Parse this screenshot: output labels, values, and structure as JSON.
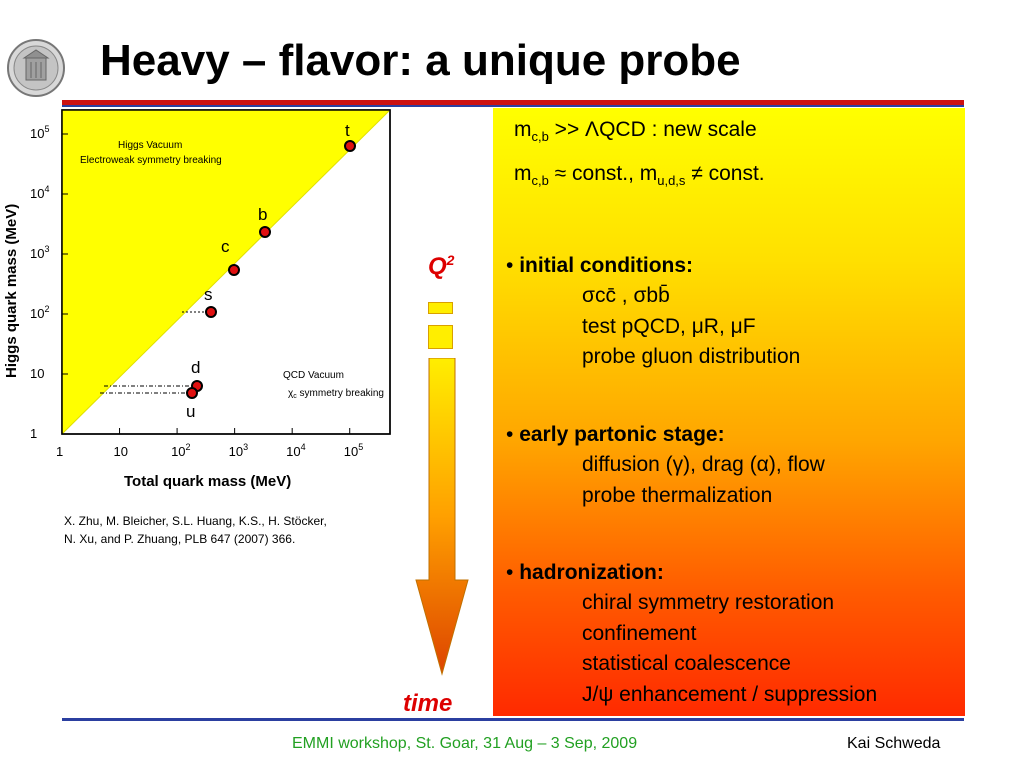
{
  "title": "Heavy – flavor: a unique probe",
  "plot": {
    "ylabel": "Higgs quark mass (MeV)",
    "xlabel": "Total quark mass (MeV)",
    "y_ticks": [
      "1",
      "10",
      "10",
      "10",
      "10",
      "10"
    ],
    "y_tick_exps": [
      "",
      "",
      "2",
      "3",
      "4",
      "5"
    ],
    "x_ticks": [
      "1",
      "10",
      "10",
      "10",
      "10",
      "10"
    ],
    "x_tick_exps": [
      "",
      "",
      "2",
      "3",
      "4",
      "5"
    ],
    "higgs_label_1": "Higgs Vacuum",
    "higgs_label_2": "Electroweak symmetry breaking",
    "qcd_label_1": "QCD Vacuum",
    "qcd_label_2_prefix": "χ",
    "qcd_label_2_sub": "c",
    "qcd_label_2_rest": " symmetry breaking",
    "quarks": [
      "t",
      "b",
      "c",
      "s",
      "d",
      "u"
    ]
  },
  "citation": {
    "line1": "X. Zhu, M. Bleicher, S.L. Huang, K.S., H. Stöcker,",
    "line2": "N. Xu, and P. Zhuang, PLB 647 (2007) 366."
  },
  "q2": {
    "base": "Q",
    "exp": "2"
  },
  "time_label": "time",
  "panel": {
    "line1_m": "m",
    "line1_sub": "c,b",
    "line1_rest": " >> ΛQCD : new scale",
    "line2_m": "m",
    "line2_sub": "c,b",
    "line2_mid": " ≈ const., m",
    "line2_sub2": "u,d,s",
    "line2_rest": " ≠ const.",
    "sec1_head": "initial conditions:",
    "sec1_items": [
      "σcc̄ , σbb̄",
      "test pQCD, μR, μF",
      "probe gluon distribution"
    ],
    "sec2_head": "early partonic stage:",
    "sec2_items": [
      "diffusion (γ), drag (α), flow",
      "probe thermalization"
    ],
    "sec3_head": "hadronization:",
    "sec3_items": [
      "chiral symmetry restoration",
      "confinement",
      "statistical coalescence",
      "J/ψ enhancement / suppression"
    ],
    "bullet": "•"
  },
  "footer": {
    "center": "EMMI workshop, St. Goar, 31 Aug – 3 Sep, 2009",
    "right": "Kai Schweda"
  },
  "colors": {
    "title_rule": "#cc1111",
    "blue_rule": "#2b3fa0",
    "accent_red": "#dd0000",
    "footer_green": "#22a022",
    "plot_yellow": "#ffff00"
  }
}
